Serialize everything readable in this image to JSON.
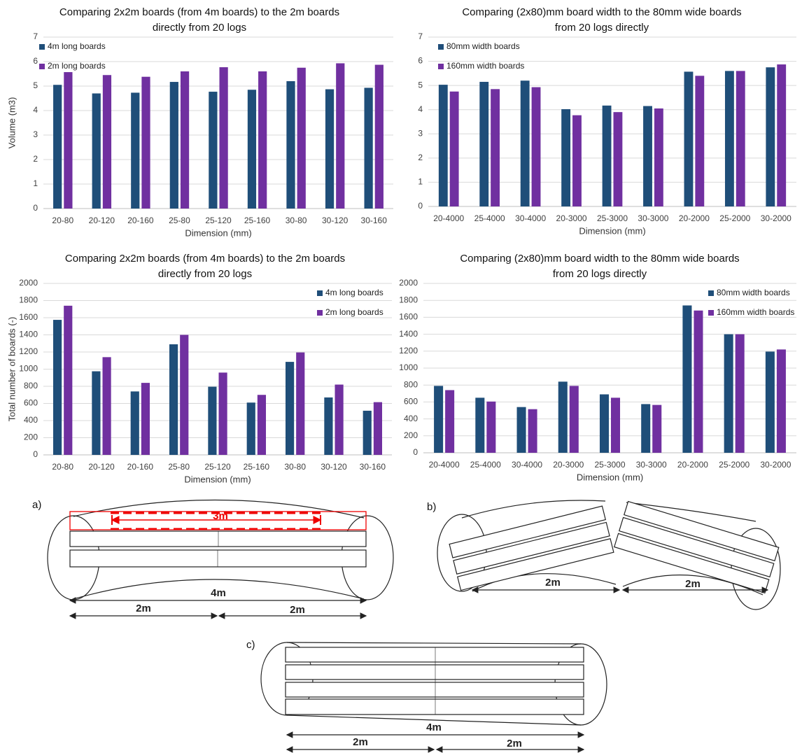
{
  "chart_data": [
    {
      "type": "bar",
      "title": [
        "Comparing 2x2m boards (from 4m boards) to the 2m boards",
        "directly from 20 logs"
      ],
      "x_label": "Dimension (mm)",
      "y_label": "Volume (m3)",
      "categories": [
        "20-80",
        "20-120",
        "20-160",
        "25-80",
        "25-120",
        "25-160",
        "30-80",
        "30-120",
        "30-160"
      ],
      "series": [
        {
          "name": "4m long boards",
          "color": "#1f4e79",
          "values": [
            5.05,
            4.7,
            4.73,
            5.17,
            4.77,
            4.85,
            5.2,
            4.87,
            4.93
          ]
        },
        {
          "name": "2m long boards",
          "color": "#7030a0",
          "values": [
            5.57,
            5.45,
            5.38,
            5.6,
            5.77,
            5.6,
            5.75,
            5.93,
            5.87
          ]
        }
      ],
      "ylim": [
        0,
        7
      ],
      "yticks": [
        0,
        1,
        2,
        3,
        4,
        5,
        6,
        7
      ],
      "grid": true,
      "legend": "top-left"
    },
    {
      "type": "bar",
      "title": [
        "Comparing (2x80)mm board width to the 80mm wide boards",
        "from 20 logs directly"
      ],
      "x_label": "Dimension (mm)",
      "categories": [
        "20-4000",
        "25-4000",
        "30-4000",
        "20-3000",
        "25-3000",
        "30-3000",
        "20-2000",
        "25-2000",
        "30-2000"
      ],
      "series": [
        {
          "name": "80mm width boards",
          "color": "#1f4e79",
          "values": [
            5.03,
            5.15,
            5.2,
            4.02,
            4.17,
            4.15,
            5.57,
            5.6,
            5.75
          ]
        },
        {
          "name": "160mm width boards",
          "color": "#7030a0",
          "values": [
            4.75,
            4.85,
            4.93,
            3.77,
            3.9,
            4.05,
            5.4,
            5.6,
            5.87
          ]
        }
      ],
      "ylim": [
        0,
        7
      ],
      "yticks": [
        0,
        1,
        2,
        3,
        4,
        5,
        6,
        7
      ],
      "grid": true,
      "legend": "top-left"
    },
    {
      "type": "bar",
      "title": [
        "Comparing 2x2m boards (from 4m boards) to the 2m boards",
        "directly from 20 logs"
      ],
      "x_label": "Dimension (mm)",
      "y_label": "Total number of boards (-)",
      "categories": [
        "20-80",
        "20-120",
        "20-160",
        "25-80",
        "25-120",
        "25-160",
        "30-80",
        "30-120",
        "30-160"
      ],
      "series": [
        {
          "name": "4m long boards",
          "color": "#1f4e79",
          "values": [
            1575,
            975,
            740,
            1290,
            795,
            610,
            1085,
            670,
            515
          ]
        },
        {
          "name": "2m long boards",
          "color": "#7030a0",
          "values": [
            1740,
            1140,
            840,
            1400,
            960,
            700,
            1195,
            820,
            615
          ]
        }
      ],
      "ylim": [
        0,
        2000
      ],
      "yticks": [
        0,
        200,
        400,
        600,
        800,
        1000,
        1200,
        1400,
        1600,
        1800,
        2000
      ],
      "grid": true,
      "legend": "top-right"
    },
    {
      "type": "bar",
      "title": [
        "Comparing (2x80)mm board width to the 80mm wide boards",
        "from 20 logs directly"
      ],
      "x_label": "Dimension (mm)",
      "categories": [
        "20-4000",
        "25-4000",
        "30-4000",
        "20-3000",
        "25-3000",
        "30-3000",
        "20-2000",
        "25-2000",
        "30-2000"
      ],
      "series": [
        {
          "name": "80mm width boards",
          "color": "#1f4e79",
          "values": [
            790,
            650,
            540,
            840,
            690,
            575,
            1740,
            1400,
            1195
          ]
        },
        {
          "name": "160mm width boards",
          "color": "#7030a0",
          "values": [
            740,
            605,
            515,
            790,
            650,
            565,
            1680,
            1400,
            1220
          ]
        }
      ],
      "ylim": [
        0,
        2000
      ],
      "yticks": [
        0,
        200,
        400,
        600,
        800,
        1000,
        1200,
        1400,
        1600,
        1800,
        2000
      ],
      "grid": true,
      "legend": "top-right"
    }
  ],
  "diagrams": {
    "a": {
      "label": "a)",
      "cut": "3m",
      "total": "4m",
      "left": "2m",
      "right": "2m"
    },
    "b": {
      "label": "b)",
      "left": "2m",
      "right": "2m"
    },
    "c": {
      "label": "c)",
      "total": "4m",
      "left": "2m",
      "right": "2m"
    }
  }
}
